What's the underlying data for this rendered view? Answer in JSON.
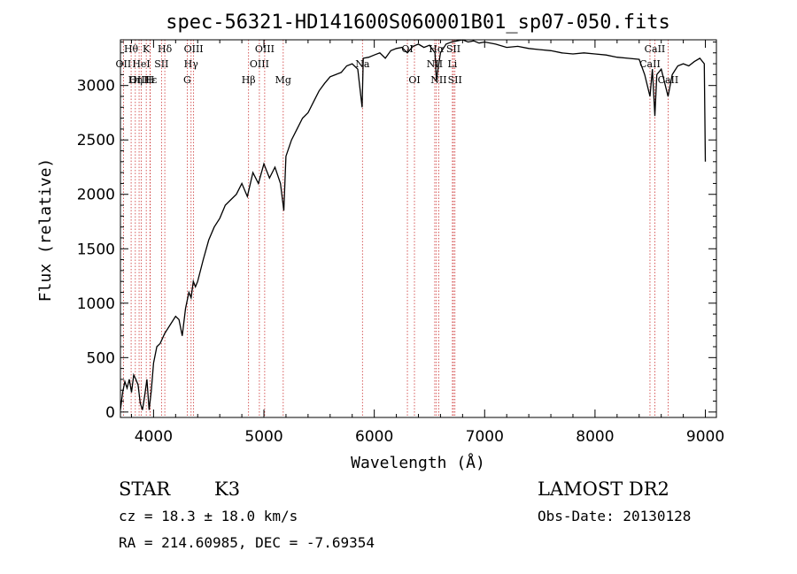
{
  "chart_data": {
    "type": "line",
    "title": "spec-56321-HD141600S060001B01_sp07-050.fits",
    "xlabel": "Wavelength (Å)",
    "ylabel": "Flux (relative)",
    "xlim": [
      3700,
      9100
    ],
    "ylim": [
      -50,
      3420
    ],
    "xticks": [
      "4000",
      "5000",
      "6000",
      "7000",
      "8000",
      "9000"
    ],
    "yticks": [
      "0",
      "500",
      "1000",
      "1500",
      "2000",
      "2500",
      "3000"
    ],
    "grid": false,
    "series": [
      {
        "x": [
          3700,
          3720,
          3740,
          3760,
          3780,
          3800,
          3820,
          3840,
          3860,
          3880,
          3900,
          3920,
          3940,
          3960,
          3980,
          4000,
          4030,
          4060,
          4100,
          4150,
          4200,
          4230,
          4260,
          4290,
          4320,
          4340,
          4360,
          4380,
          4400,
          4450,
          4500,
          4550,
          4600,
          4650,
          4700,
          4750,
          4800,
          4850,
          4900,
          4950,
          5000,
          5050,
          5100,
          5150,
          5180,
          5200,
          5250,
          5300,
          5350,
          5400,
          5450,
          5500,
          5550,
          5600,
          5650,
          5700,
          5750,
          5800,
          5850,
          5890,
          5900,
          5950,
          6000,
          6050,
          6100,
          6150,
          6200,
          6250,
          6300,
          6350,
          6400,
          6450,
          6500,
          6550,
          6563,
          6600,
          6650,
          6700,
          6750,
          6800,
          6850,
          6900,
          6950,
          7000,
          7100,
          7200,
          7300,
          7400,
          7500,
          7600,
          7700,
          7800,
          7900,
          8000,
          8100,
          8200,
          8300,
          8400,
          8450,
          8498,
          8520,
          8542,
          8560,
          8600,
          8662,
          8700,
          8750,
          8800,
          8850,
          8900,
          8950,
          8990,
          9000
        ],
        "values": [
          20,
          180,
          280,
          220,
          300,
          180,
          340,
          300,
          250,
          80,
          20,
          150,
          300,
          20,
          200,
          450,
          600,
          630,
          720,
          800,
          880,
          850,
          700,
          950,
          1100,
          1050,
          1200,
          1150,
          1200,
          1400,
          1580,
          1700,
          1780,
          1900,
          1950,
          2000,
          2100,
          1980,
          2200,
          2100,
          2280,
          2150,
          2250,
          2100,
          1850,
          2350,
          2500,
          2600,
          2700,
          2750,
          2850,
          2950,
          3020,
          3080,
          3100,
          3120,
          3180,
          3200,
          3150,
          2800,
          3250,
          3260,
          3280,
          3300,
          3250,
          3320,
          3340,
          3350,
          3300,
          3360,
          3380,
          3350,
          3370,
          3300,
          3050,
          3300,
          3380,
          3400,
          3410,
          3420,
          3400,
          3410,
          3390,
          3400,
          3380,
          3350,
          3360,
          3340,
          3330,
          3320,
          3300,
          3290,
          3300,
          3290,
          3280,
          3260,
          3250,
          3240,
          3100,
          2900,
          3150,
          2720,
          3100,
          3150,
          2900,
          3100,
          3180,
          3200,
          3180,
          3220,
          3250,
          3200,
          2300
        ]
      }
    ],
    "line_markers": [
      {
        "label": "Hθ",
        "x": 3797,
        "row": 0
      },
      {
        "label": "OII",
        "x": 3727,
        "row": 1
      },
      {
        "label": "OIII",
        "x": 3869,
        "row": 2
      },
      {
        "label": "K",
        "x": 3934,
        "row": 0
      },
      {
        "label": "HeI",
        "x": 3889,
        "row": 1
      },
      {
        "label": "Hε",
        "x": 3970,
        "row": 2
      },
      {
        "label": "H",
        "x": 3968,
        "row": 2
      },
      {
        "label": "Hη",
        "x": 3835,
        "row": 2
      },
      {
        "label": "Hδ",
        "x": 4102,
        "row": 0
      },
      {
        "label": "SII",
        "x": 4072,
        "row": 1
      },
      {
        "label": "OIII",
        "x": 4363,
        "row": 0
      },
      {
        "label": "Hγ",
        "x": 4340,
        "row": 1
      },
      {
        "label": "G",
        "x": 4305,
        "row": 2
      },
      {
        "label": "OIII",
        "x": 5007,
        "row": 0
      },
      {
        "label": "OIII",
        "x": 4959,
        "row": 1
      },
      {
        "label": "Hβ",
        "x": 4861,
        "row": 2
      },
      {
        "label": "Mg",
        "x": 5175,
        "row": 2
      },
      {
        "label": "Na",
        "x": 5893,
        "row": 1
      },
      {
        "label": "OI",
        "x": 6300,
        "row": 0
      },
      {
        "label": "OI",
        "x": 6364,
        "row": 2
      },
      {
        "label": "Hα",
        "x": 6563,
        "row": 0
      },
      {
        "label": "NII",
        "x": 6548,
        "row": 1
      },
      {
        "label": "NII",
        "x": 6584,
        "row": 2
      },
      {
        "label": "SII",
        "x": 6717,
        "row": 0
      },
      {
        "label": "Li",
        "x": 6708,
        "row": 1
      },
      {
        "label": "SII",
        "x": 6731,
        "row": 2
      },
      {
        "label": "CaII",
        "x": 8542,
        "row": 0
      },
      {
        "label": "CaII",
        "x": 8498,
        "row": 1
      },
      {
        "label": "CaII",
        "x": 8662,
        "row": 2
      }
    ],
    "marker_color": "#cc3333"
  },
  "info": {
    "object_class": "STAR",
    "subclass": "K3",
    "survey": "LAMOST DR2",
    "redshift": "cz = 18.3 ± 18.0 km/s",
    "obs_date": "Obs-Date: 20130128",
    "coords": "RA = 214.60985, DEC =  -7.69354"
  }
}
